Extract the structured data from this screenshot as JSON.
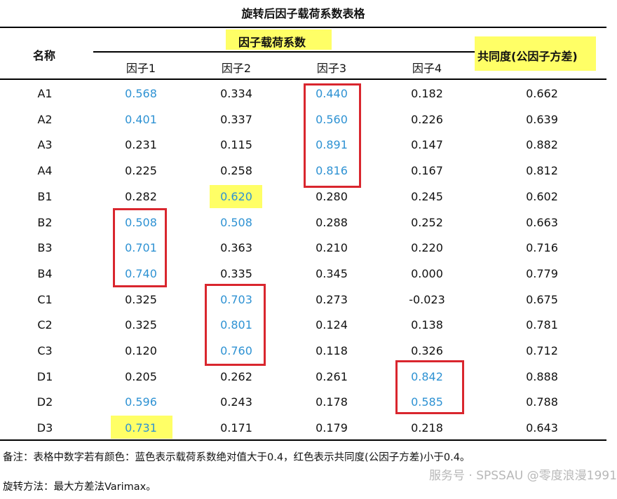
{
  "title": "旋转后因子载荷系数表格",
  "header": {
    "name_col": "名称",
    "loading_group": "因子载荷系数",
    "communality": "共同度(公因子方差)",
    "factors": [
      "因子1",
      "因子2",
      "因子3",
      "因子4"
    ]
  },
  "rows": [
    {
      "name": "A1",
      "f1": "0.568",
      "f2": "0.334",
      "f3": "0.440",
      "f4": "0.182",
      "comm": "0.662"
    },
    {
      "name": "A2",
      "f1": "0.401",
      "f2": "0.337",
      "f3": "0.560",
      "f4": "0.226",
      "comm": "0.639"
    },
    {
      "name": "A3",
      "f1": "0.231",
      "f2": "0.115",
      "f3": "0.891",
      "f4": "0.147",
      "comm": "0.882"
    },
    {
      "name": "A4",
      "f1": "0.225",
      "f2": "0.258",
      "f3": "0.816",
      "f4": "0.167",
      "comm": "0.812"
    },
    {
      "name": "B1",
      "f1": "0.282",
      "f2": "0.620",
      "f3": "0.280",
      "f4": "0.245",
      "comm": "0.602"
    },
    {
      "name": "B2",
      "f1": "0.508",
      "f2": "0.508",
      "f3": "0.288",
      "f4": "0.252",
      "comm": "0.663"
    },
    {
      "name": "B3",
      "f1": "0.701",
      "f2": "0.363",
      "f3": "0.210",
      "f4": "0.220",
      "comm": "0.716"
    },
    {
      "name": "B4",
      "f1": "0.740",
      "f2": "0.335",
      "f3": "0.345",
      "f4": "0.000",
      "comm": "0.779"
    },
    {
      "name": "C1",
      "f1": "0.325",
      "f2": "0.703",
      "f3": "0.273",
      "f4": "-0.023",
      "comm": "0.675"
    },
    {
      "name": "C2",
      "f1": "0.325",
      "f2": "0.801",
      "f3": "0.124",
      "f4": "0.138",
      "comm": "0.781"
    },
    {
      "name": "C3",
      "f1": "0.120",
      "f2": "0.760",
      "f3": "0.118",
      "f4": "0.326",
      "comm": "0.712"
    },
    {
      "name": "D1",
      "f1": "0.205",
      "f2": "0.262",
      "f3": "0.261",
      "f4": "0.842",
      "comm": "0.888"
    },
    {
      "name": "D2",
      "f1": "0.596",
      "f2": "0.243",
      "f3": "0.178",
      "f4": "0.585",
      "comm": "0.788"
    },
    {
      "name": "D3",
      "f1": "0.731",
      "f2": "0.171",
      "f3": "0.179",
      "f4": "0.218",
      "comm": "0.643"
    }
  ],
  "blue_cells": [
    {
      "row": "A1",
      "col": "f1"
    },
    {
      "row": "A1",
      "col": "f3"
    },
    {
      "row": "A2",
      "col": "f1"
    },
    {
      "row": "A2",
      "col": "f3"
    },
    {
      "row": "A3",
      "col": "f3"
    },
    {
      "row": "A4",
      "col": "f3"
    },
    {
      "row": "B1",
      "col": "f2"
    },
    {
      "row": "B2",
      "col": "f1"
    },
    {
      "row": "B2",
      "col": "f2"
    },
    {
      "row": "B3",
      "col": "f1"
    },
    {
      "row": "B4",
      "col": "f1"
    },
    {
      "row": "C1",
      "col": "f2"
    },
    {
      "row": "C2",
      "col": "f2"
    },
    {
      "row": "C3",
      "col": "f2"
    },
    {
      "row": "D1",
      "col": "f4"
    },
    {
      "row": "D2",
      "col": "f1"
    },
    {
      "row": "D2",
      "col": "f4"
    },
    {
      "row": "D3",
      "col": "f1"
    }
  ],
  "colors": {
    "blue": "#2e92d3",
    "red_box": "#d9262e",
    "highlight": "#ffff66"
  },
  "notes": {
    "remark": "备注：表格中数字若有颜色：蓝色表示载荷系数绝对值大于0.4，红色表示共同度(公因子方差)小于0.4。",
    "method": "旋转方法：最大方差法Varimax。"
  },
  "watermark": "服务号 · SPSSAU  @零度浪漫1991"
}
